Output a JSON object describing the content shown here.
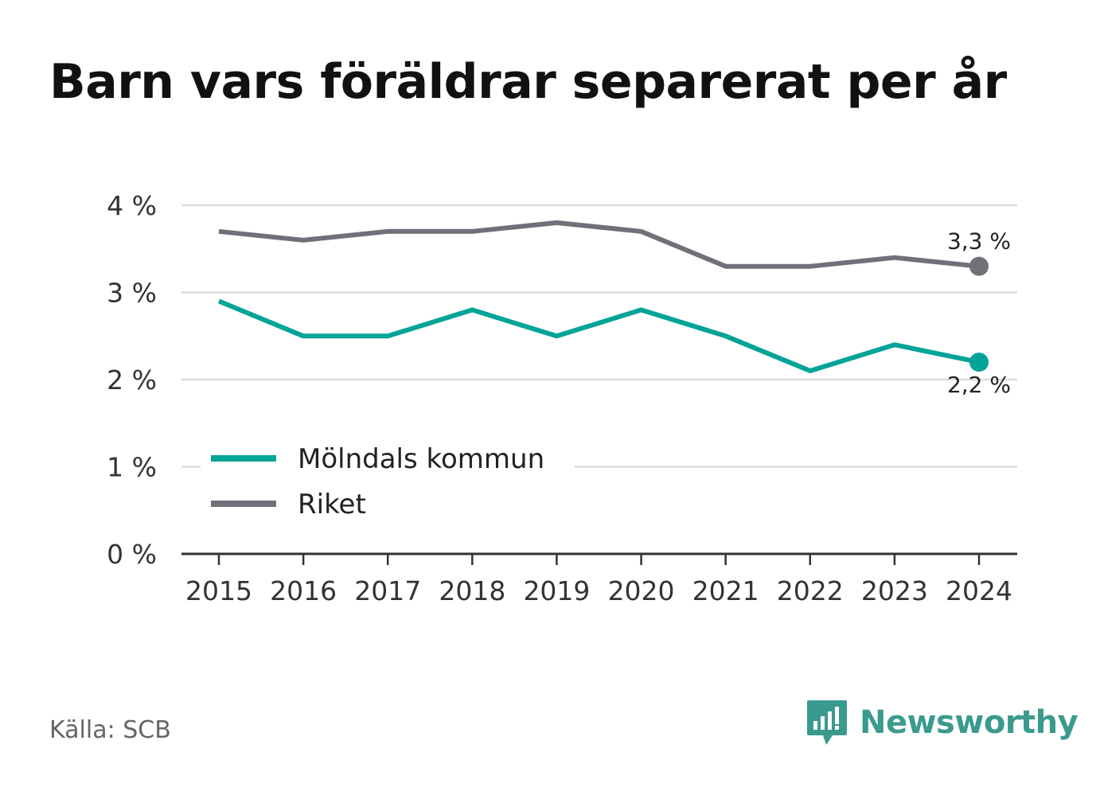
{
  "title": "Barn vars föräldrar separerat per år",
  "source": "Källa: SCB",
  "brand": {
    "name": "Newsworthy",
    "icon": "newsworthy-logo-icon",
    "color": "#3a9a8e"
  },
  "chart_data": {
    "type": "line",
    "title": "Barn vars föräldrar separerat per år",
    "xlabel": "",
    "ylabel": "",
    "x": [
      "2015",
      "2016",
      "2017",
      "2018",
      "2019",
      "2020",
      "2021",
      "2022",
      "2023",
      "2024"
    ],
    "ylim": [
      0,
      4
    ],
    "yticks": [
      0,
      1,
      2,
      3,
      4
    ],
    "ytick_labels": [
      "0 %",
      "1 %",
      "2 %",
      "3 %",
      "4 %"
    ],
    "grid": true,
    "legend_position": "bottom-left",
    "series": [
      {
        "name": "Mölndals kommun",
        "color": "#00a497",
        "values": [
          2.9,
          2.5,
          2.5,
          2.8,
          2.5,
          2.8,
          2.5,
          2.1,
          2.4,
          2.2
        ],
        "end_label": "2,2 %"
      },
      {
        "name": "Riket",
        "color": "#707078",
        "values": [
          3.7,
          3.6,
          3.7,
          3.7,
          3.8,
          3.7,
          3.3,
          3.3,
          3.4,
          3.3
        ],
        "end_label": "3,3 %"
      }
    ]
  }
}
